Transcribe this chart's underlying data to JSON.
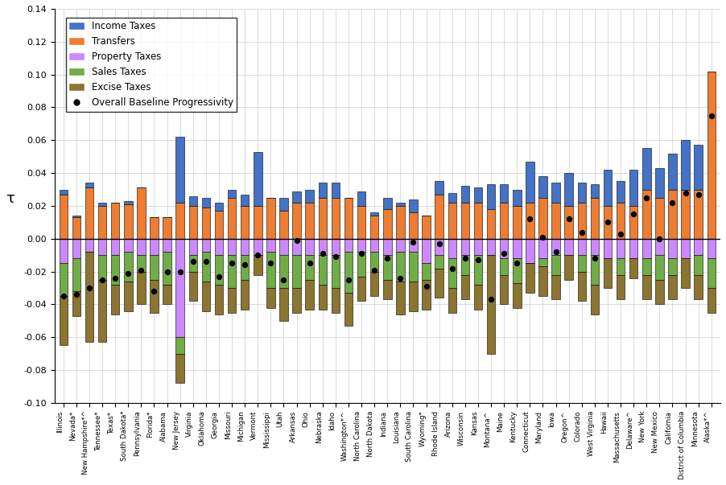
{
  "states": [
    "Illinois",
    "Nevada*",
    "New Hampshire*^",
    "Tennessee*",
    "Texas*",
    "South Dakota*",
    "Pennsylvania",
    "Florida*",
    "Alabama",
    "New Jersey",
    "Virginia",
    "Oklahoma",
    "Georgia",
    "Missouri",
    "Michigan",
    "Vermont",
    "Mississippi",
    "Utah",
    "Arkansas",
    "Ohio",
    "Nebraska",
    "Idaho",
    "Washington*^",
    "North Carolina",
    "North Dakota",
    "Indiana",
    "Louisiana",
    "South Carolina",
    "Wyoming*",
    "Rhode Island",
    "Arizona",
    "Wisconsin",
    "Kansas",
    "Montana^",
    "Maine",
    "Kentucky",
    "Connecticut",
    "Maryland",
    "Iowa",
    "Oregon^",
    "Colorado",
    "West Virginia",
    "Hawaii",
    "Massachusetts",
    "Delaware^",
    "New York",
    "New Mexico",
    "California",
    "District of Columbia",
    "Minnesota",
    "Alaska*^"
  ],
  "income_taxes": [
    0.003,
    0.001,
    0.003,
    0.002,
    0.0,
    0.002,
    0.0,
    0.0,
    0.0,
    0.04,
    0.006,
    0.006,
    0.005,
    0.005,
    0.007,
    0.033,
    0.0,
    0.008,
    0.007,
    0.008,
    0.009,
    0.009,
    0.0,
    0.009,
    0.002,
    0.007,
    0.002,
    0.008,
    0.0,
    0.008,
    0.006,
    0.01,
    0.009,
    0.015,
    0.011,
    0.01,
    0.025,
    0.013,
    0.012,
    0.02,
    0.012,
    0.008,
    0.022,
    0.013,
    0.022,
    0.025,
    0.018,
    0.022,
    0.03,
    0.027,
    0.0
  ],
  "transfers": [
    0.027,
    0.013,
    0.031,
    0.02,
    0.022,
    0.021,
    0.031,
    0.013,
    0.013,
    0.022,
    0.02,
    0.019,
    0.017,
    0.025,
    0.02,
    0.02,
    0.025,
    0.017,
    0.022,
    0.022,
    0.025,
    0.025,
    0.025,
    0.02,
    0.014,
    0.018,
    0.02,
    0.016,
    0.014,
    0.027,
    0.022,
    0.022,
    0.022,
    0.018,
    0.022,
    0.02,
    0.022,
    0.025,
    0.022,
    0.02,
    0.022,
    0.025,
    0.02,
    0.022,
    0.02,
    0.03,
    0.025,
    0.03,
    0.03,
    0.03,
    0.102
  ],
  "property_taxes": [
    -0.015,
    -0.012,
    -0.008,
    -0.01,
    -0.01,
    -0.008,
    -0.01,
    -0.01,
    -0.008,
    -0.06,
    -0.01,
    -0.008,
    -0.01,
    -0.01,
    -0.01,
    -0.01,
    -0.008,
    -0.01,
    -0.01,
    -0.01,
    -0.01,
    -0.01,
    -0.008,
    -0.008,
    -0.008,
    -0.01,
    -0.008,
    -0.008,
    -0.015,
    -0.01,
    -0.012,
    -0.01,
    -0.01,
    -0.01,
    -0.012,
    -0.012,
    -0.015,
    -0.012,
    -0.01,
    -0.01,
    -0.01,
    -0.01,
    -0.012,
    -0.012,
    -0.012,
    -0.012,
    -0.01,
    -0.012,
    -0.012,
    -0.01,
    -0.012
  ],
  "sales_taxes": [
    -0.02,
    -0.02,
    0.0,
    -0.015,
    -0.018,
    -0.018,
    -0.01,
    -0.015,
    -0.02,
    -0.01,
    -0.01,
    -0.018,
    -0.018,
    -0.02,
    -0.015,
    0.0,
    -0.022,
    -0.02,
    -0.02,
    -0.015,
    -0.018,
    -0.02,
    -0.025,
    -0.015,
    -0.012,
    -0.015,
    -0.018,
    -0.018,
    -0.01,
    -0.008,
    -0.018,
    -0.012,
    -0.018,
    0.0,
    -0.01,
    -0.015,
    0.0,
    -0.005,
    -0.012,
    0.0,
    -0.01,
    -0.018,
    0.0,
    -0.01,
    0.0,
    -0.01,
    -0.015,
    -0.01,
    0.0,
    -0.012,
    -0.018
  ],
  "excise_taxes": [
    -0.03,
    -0.015,
    -0.055,
    -0.038,
    -0.018,
    -0.018,
    -0.02,
    -0.02,
    -0.012,
    -0.018,
    -0.018,
    -0.018,
    -0.018,
    -0.015,
    -0.018,
    -0.012,
    -0.012,
    -0.02,
    -0.015,
    -0.018,
    -0.015,
    -0.015,
    -0.02,
    -0.015,
    -0.015,
    -0.012,
    -0.02,
    -0.018,
    -0.018,
    -0.018,
    -0.015,
    -0.015,
    -0.015,
    -0.06,
    -0.018,
    -0.015,
    -0.018,
    -0.018,
    -0.015,
    -0.015,
    -0.018,
    -0.018,
    -0.018,
    -0.015,
    -0.012,
    -0.015,
    -0.015,
    -0.015,
    -0.018,
    -0.015,
    -0.015
  ],
  "overall_progressivity": [
    -0.035,
    -0.034,
    -0.03,
    -0.025,
    -0.024,
    -0.021,
    -0.019,
    -0.032,
    -0.02,
    -0.02,
    -0.014,
    -0.014,
    -0.023,
    -0.015,
    -0.016,
    -0.01,
    -0.015,
    -0.025,
    -0.001,
    -0.015,
    -0.009,
    -0.011,
    -0.025,
    -0.009,
    -0.019,
    -0.012,
    -0.024,
    -0.002,
    -0.029,
    -0.003,
    -0.018,
    -0.012,
    -0.013,
    -0.037,
    -0.009,
    -0.015,
    0.012,
    0.001,
    -0.008,
    0.012,
    0.004,
    -0.012,
    0.01,
    0.003,
    0.015,
    0.025,
    0.0,
    0.022,
    0.028,
    0.027,
    0.075
  ],
  "colors": {
    "income_taxes": "#4472c4",
    "transfers": "#ed7d31",
    "property_taxes": "#cc88ff",
    "sales_taxes": "#70ad47",
    "excise_taxes": "#8B7530",
    "overall_progressivity": "#000000"
  },
  "ylim": [
    -0.1,
    0.14
  ],
  "ylabel": "τ"
}
